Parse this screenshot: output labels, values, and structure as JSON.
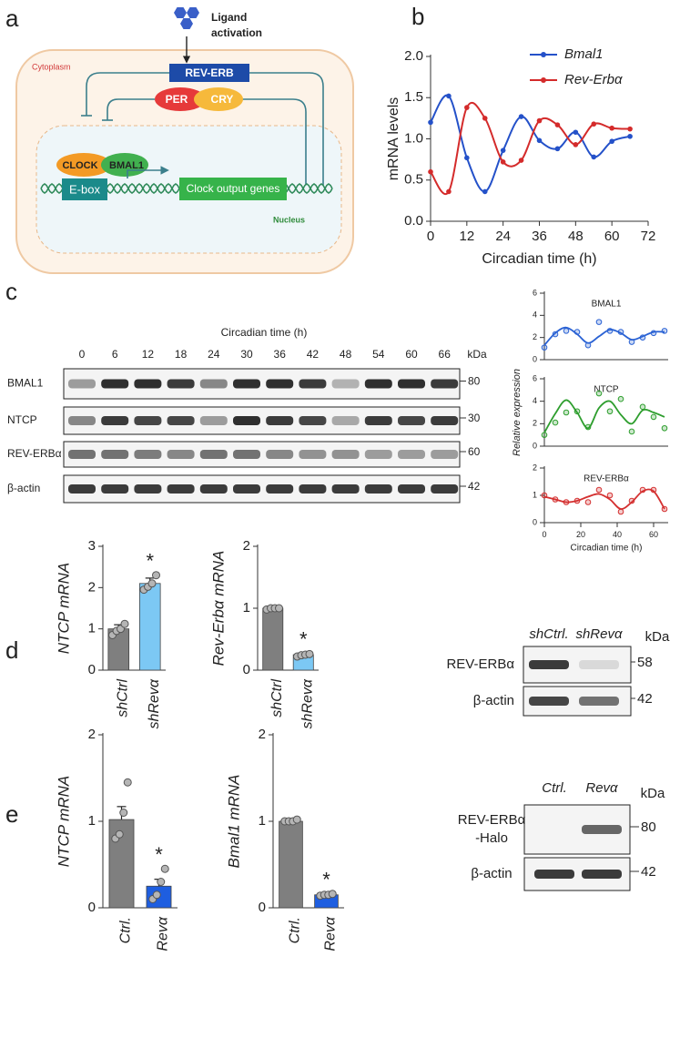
{
  "panel_labels": [
    "a",
    "b",
    "c",
    "d",
    "e"
  ],
  "diagram": {
    "ligand": [
      "Ligand",
      "activation"
    ],
    "cytoplasm": "Cytoplasm",
    "receptor": "REV-ERB",
    "per": "PER",
    "cry": "CRY",
    "clock": "CLOCK",
    "bmal1": "BMAL1",
    "ebox": "E-box",
    "genes": "Clock output genes",
    "nucleus": "Nucleus"
  },
  "chart_data": [
    {
      "type": "line",
      "xlabel": "Circadian time (h)",
      "ylabel": "mRNA levels",
      "x": [
        0,
        6,
        12,
        18,
        24,
        30,
        36,
        42,
        48,
        54,
        60,
        66
      ],
      "series": [
        {
          "name": "Bmal1",
          "color": "#2451c9",
          "values": [
            1.2,
            1.52,
            0.77,
            0.36,
            0.86,
            1.27,
            0.98,
            0.88,
            1.08,
            0.78,
            0.97,
            1.03
          ]
        },
        {
          "name": "Rev-Erbα",
          "color": "#d42b2b",
          "values": [
            0.6,
            0.36,
            1.38,
            1.25,
            0.72,
            0.74,
            1.22,
            1.17,
            0.93,
            1.18,
            1.13,
            1.12
          ]
        }
      ],
      "xlim": [
        0,
        72
      ],
      "xticks": [
        0,
        12,
        24,
        36,
        48,
        60,
        72
      ],
      "ylim": [
        0,
        2
      ],
      "yticks": [
        {
          "value": 0,
          "label": "0.0"
        },
        0.5,
        {
          "value": 1,
          "label": "1.0"
        },
        1.5,
        {
          "value": 2,
          "label": "2.0"
        }
      ],
      "legend": "upper right"
    },
    {
      "type": "scatter",
      "title": "BMAL1",
      "color": "#2a62d4",
      "x": [
        0,
        6,
        12,
        18,
        24,
        30,
        36,
        42,
        48,
        54,
        60,
        66
      ],
      "values": [
        1.1,
        2.3,
        2.6,
        2.5,
        1.3,
        3.4,
        2.6,
        2.5,
        1.6,
        2.0,
        2.4,
        2.6
      ],
      "fit": [
        1.3,
        2.4,
        2.9,
        2.3,
        1.5,
        2.1,
        2.7,
        2.4,
        1.8,
        2.1,
        2.5,
        2.5
      ],
      "xlim": [
        0,
        68
      ],
      "ylim": [
        0,
        6
      ],
      "yticks": [
        0,
        2,
        4,
        6
      ]
    },
    {
      "type": "scatter",
      "title": "NTCP",
      "color": "#2e9e2e",
      "ylabel": "Relative expression",
      "x": [
        0,
        6,
        12,
        18,
        24,
        30,
        36,
        42,
        48,
        54,
        60,
        66
      ],
      "values": [
        1.0,
        2.1,
        3.0,
        3.1,
        1.7,
        4.7,
        3.1,
        4.2,
        1.3,
        3.5,
        2.6,
        1.6
      ],
      "fit": [
        1.2,
        2.9,
        4.1,
        3.0,
        1.6,
        3.4,
        4.0,
        2.8,
        2.0,
        3.2,
        3.0,
        2.6
      ],
      "xlim": [
        0,
        68
      ],
      "ylim": [
        0,
        6
      ],
      "yticks": [
        0,
        2,
        4,
        6
      ]
    },
    {
      "type": "scatter",
      "title": "REV-ERBα",
      "color": "#d43030",
      "xlabel": "Circadian time (h)",
      "x": [
        0,
        6,
        12,
        18,
        24,
        30,
        36,
        42,
        48,
        54,
        60,
        66
      ],
      "values": [
        1.0,
        0.85,
        0.75,
        0.8,
        0.75,
        1.2,
        1.0,
        0.4,
        0.8,
        1.2,
        1.2,
        0.5
      ],
      "fit": [
        0.95,
        0.85,
        0.75,
        0.8,
        0.95,
        1.05,
        0.85,
        0.5,
        0.75,
        1.15,
        1.15,
        0.5
      ],
      "xlim": [
        0,
        68
      ],
      "xticks": [
        0,
        20,
        40,
        60
      ],
      "ylim": [
        0,
        2
      ],
      "yticks": [
        0,
        1,
        2
      ]
    },
    {
      "type": "bar",
      "ylabel": "NTCP mRNA",
      "categories": [
        "shCtrl",
        "shRevα"
      ],
      "values": [
        1.0,
        2.1
      ],
      "errors": [
        0.1,
        0.13
      ],
      "points": [
        [
          0.85,
          0.95,
          1.0,
          1.12
        ],
        [
          1.95,
          2.02,
          2.1,
          2.3
        ]
      ],
      "colors": [
        "#7f7f7f",
        "#7cc8f4"
      ],
      "ylim": [
        0,
        3
      ],
      "yticks": [
        0,
        1,
        2,
        3
      ],
      "annotations": [
        {
          "text": "*",
          "category": "shRevα"
        }
      ]
    },
    {
      "type": "bar",
      "ylabel": "Rev-Erbα mRNA",
      "categories": [
        "shCtrl",
        "shRevα"
      ],
      "values": [
        1.0,
        0.25
      ],
      "errors": [
        0.01,
        0.02
      ],
      "points": [
        [
          0.98,
          1.0,
          1.0,
          1.0
        ],
        [
          0.22,
          0.24,
          0.25,
          0.26
        ]
      ],
      "colors": [
        "#7f7f7f",
        "#7cc8f4"
      ],
      "ylim": [
        0,
        2
      ],
      "yticks": [
        0,
        1,
        2
      ],
      "annotations": [
        {
          "text": "*",
          "category": "shRevα"
        }
      ]
    },
    {
      "type": "bar",
      "ylabel": "NTCP mRNA",
      "categories": [
        "Ctrl.",
        "Revα"
      ],
      "values": [
        1.02,
        0.25
      ],
      "errors": [
        0.15,
        0.08
      ],
      "points": [
        [
          0.8,
          0.85,
          1.1,
          1.45
        ],
        [
          0.1,
          0.15,
          0.3,
          0.45
        ]
      ],
      "colors": [
        "#7f7f7f",
        "#1e5ee0"
      ],
      "ylim": [
        0,
        2
      ],
      "yticks": [
        0,
        1,
        2
      ],
      "annotations": [
        {
          "text": "*",
          "category": "Revα"
        }
      ]
    },
    {
      "type": "bar",
      "ylabel": "Bmal1 mRNA",
      "categories": [
        "Ctrl.",
        "Revα"
      ],
      "values": [
        1.0,
        0.15
      ],
      "errors": [
        0.01,
        0.01
      ],
      "points": [
        [
          1.0,
          1.0,
          1.0,
          1.02
        ],
        [
          0.14,
          0.15,
          0.15,
          0.16
        ]
      ],
      "colors": [
        "#7f7f7f",
        "#1e5ee0"
      ],
      "ylim": [
        0,
        2
      ],
      "yticks": [
        0,
        1,
        2
      ],
      "annotations": [
        {
          "text": "*",
          "category": "Revα"
        }
      ]
    }
  ],
  "blots": [
    {
      "xlabel": "Circadian time (h)",
      "lanes": [
        "0",
        "6",
        "12",
        "18",
        "24",
        "30",
        "36",
        "42",
        "48",
        "54",
        "60",
        "66"
      ],
      "unit": "kDa",
      "rows": [
        {
          "label": "BMAL1",
          "size": 80
        },
        {
          "label": "NTCP",
          "size": 30
        },
        {
          "label": "REV-ERBα",
          "size": 60
        },
        {
          "label": "β-actin",
          "size": 42
        }
      ]
    },
    {
      "lanes": [
        "shCtrl.",
        "shRevα"
      ],
      "unit": "kDa",
      "rows": [
        {
          "label": "REV-ERBα",
          "size": 58
        },
        {
          "label": "β-actin",
          "size": 42
        }
      ]
    },
    {
      "lanes": [
        "Ctrl.",
        "Revα"
      ],
      "unit": "kDa",
      "rows": [
        {
          "label": [
            "REV-ERBα",
            "-Halo"
          ],
          "size": 80
        },
        {
          "label": "β-actin",
          "size": 42
        }
      ]
    }
  ]
}
